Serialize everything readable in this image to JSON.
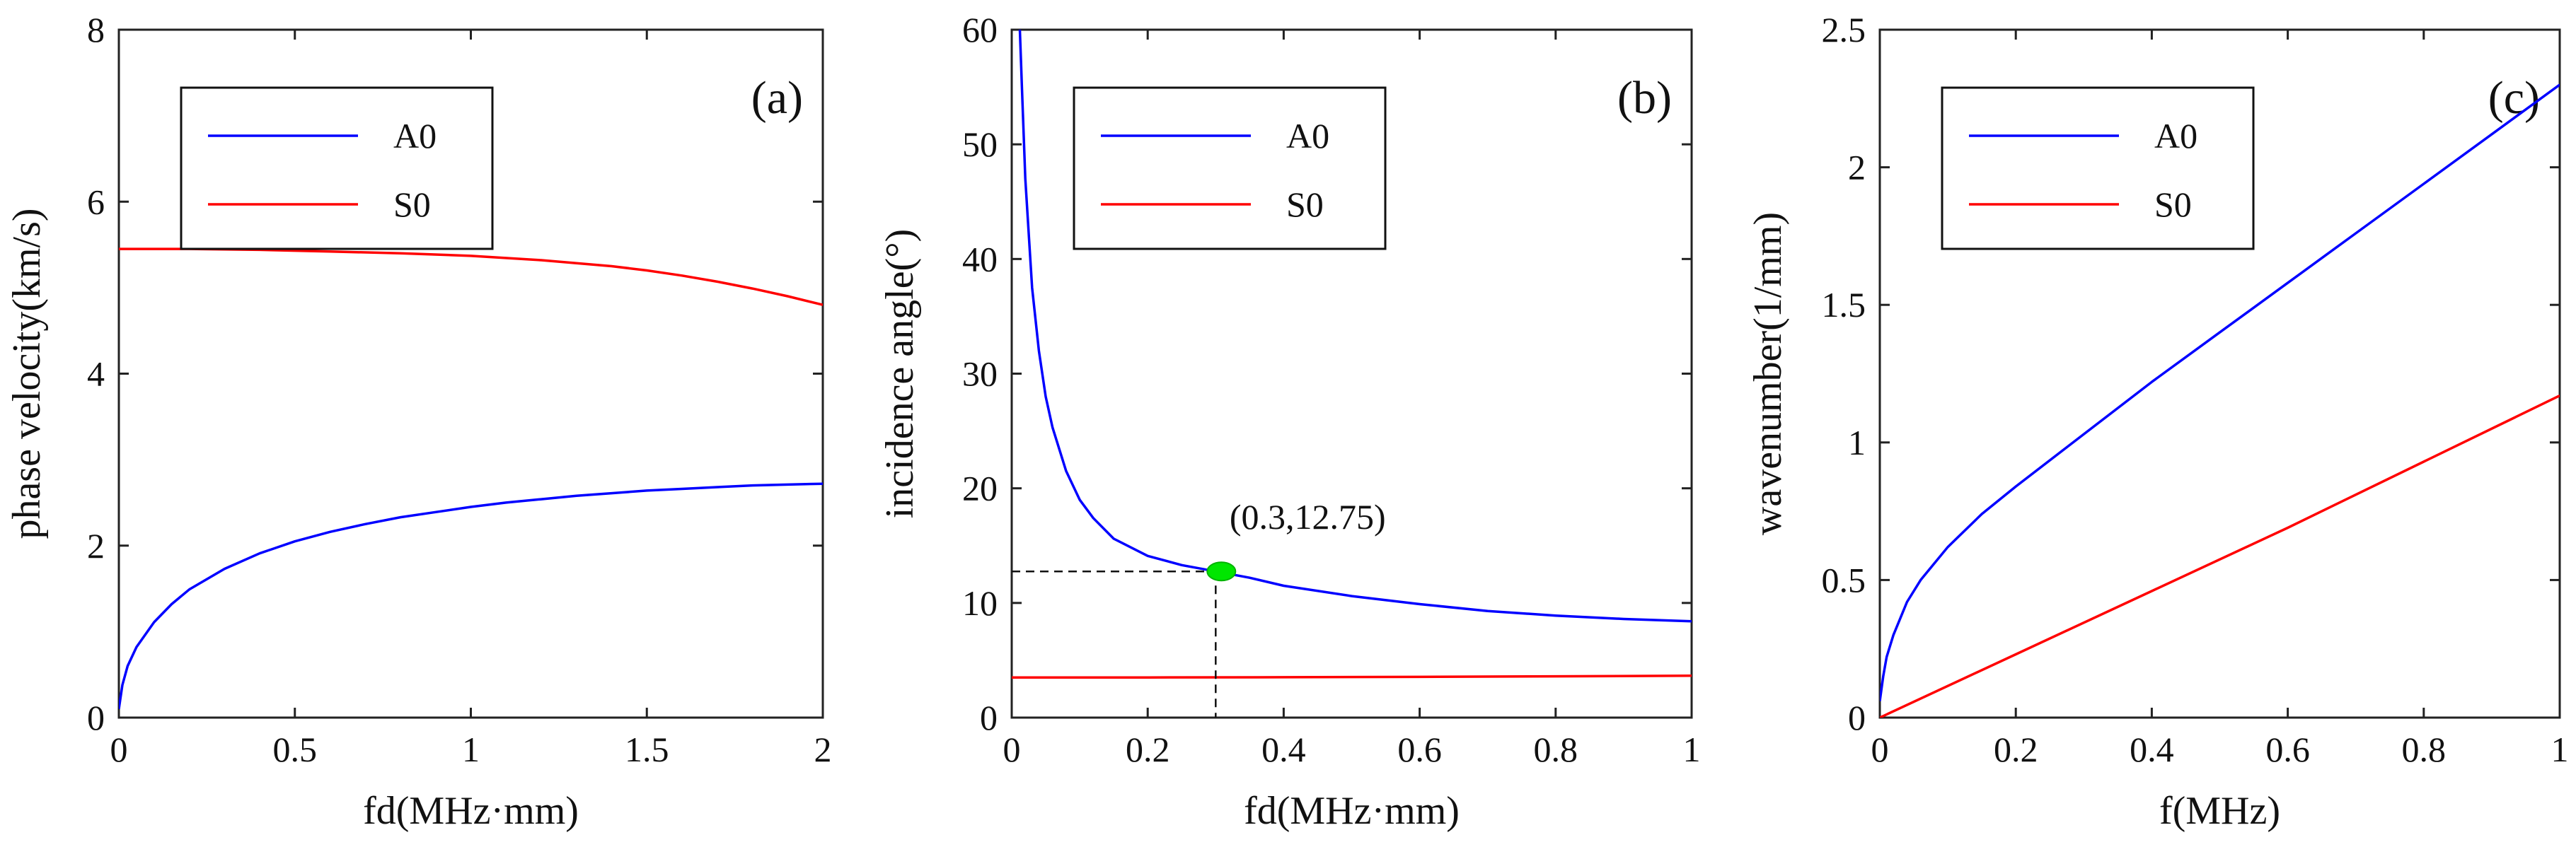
{
  "colors": {
    "A0": "#0000ff",
    "S0": "#ff0000",
    "marker": "#00e600",
    "axis": "#222222"
  },
  "chart_data": [
    {
      "type": "line",
      "panel_label": "(a)",
      "xlabel": "fd(MHz·mm)",
      "ylabel": "phase velocity(km/s)",
      "xlim": [
        0,
        2
      ],
      "ylim": [
        0,
        8
      ],
      "x_ticks": [
        "0",
        "0.5",
        "1",
        "1.5",
        "2"
      ],
      "x_tick_values": [
        0,
        0.5,
        1,
        1.5,
        2
      ],
      "y_ticks": [
        "0",
        "2",
        "4",
        "6",
        "8"
      ],
      "y_tick_values": [
        0,
        2,
        4,
        6,
        8
      ],
      "legend": {
        "position": "top-left",
        "entries": [
          "A0",
          "S0"
        ]
      },
      "series": [
        {
          "name": "A0",
          "color_key": "A0",
          "x": [
            0,
            0.01,
            0.025,
            0.05,
            0.1,
            0.15,
            0.2,
            0.3,
            0.4,
            0.5,
            0.6,
            0.7,
            0.8,
            0.9,
            1.0,
            1.1,
            1.2,
            1.3,
            1.4,
            1.5,
            1.6,
            1.7,
            1.8,
            1.9,
            2.0
          ],
          "y": [
            0.1,
            0.38,
            0.6,
            0.82,
            1.11,
            1.32,
            1.49,
            1.73,
            1.91,
            2.05,
            2.16,
            2.25,
            2.33,
            2.39,
            2.45,
            2.5,
            2.54,
            2.58,
            2.61,
            2.64,
            2.66,
            2.68,
            2.7,
            2.71,
            2.72
          ]
        },
        {
          "name": "S0",
          "color_key": "S0",
          "x": [
            0,
            0.2,
            0.4,
            0.6,
            0.8,
            1.0,
            1.2,
            1.4,
            1.5,
            1.6,
            1.7,
            1.8,
            1.9,
            2.0
          ],
          "y": [
            5.45,
            5.45,
            5.44,
            5.42,
            5.4,
            5.37,
            5.32,
            5.25,
            5.2,
            5.14,
            5.07,
            4.99,
            4.9,
            4.8
          ]
        }
      ]
    },
    {
      "type": "line",
      "panel_label": "(b)",
      "xlabel": "fd(MHz·mm)",
      "ylabel": "incidence angle(°)",
      "xlim": [
        0,
        1
      ],
      "ylim": [
        0,
        60
      ],
      "x_ticks": [
        "0",
        "0.2",
        "0.4",
        "0.6",
        "0.8",
        "1"
      ],
      "x_tick_values": [
        0,
        0.2,
        0.4,
        0.6,
        0.8,
        1
      ],
      "y_ticks": [
        "0",
        "10",
        "20",
        "30",
        "40",
        "50",
        "60"
      ],
      "y_tick_values": [
        0,
        10,
        20,
        30,
        40,
        50,
        60
      ],
      "legend": {
        "position": "top-left",
        "entries": [
          "A0",
          "S0"
        ]
      },
      "series": [
        {
          "name": "A0",
          "color_key": "A0",
          "x": [
            0.012,
            0.015,
            0.02,
            0.03,
            0.04,
            0.05,
            0.06,
            0.08,
            0.1,
            0.12,
            0.15,
            0.2,
            0.25,
            0.3,
            0.35,
            0.4,
            0.5,
            0.6,
            0.7,
            0.8,
            0.9,
            1.0
          ],
          "y": [
            60,
            55,
            47,
            37.5,
            32,
            28,
            25.3,
            21.5,
            19,
            17.4,
            15.6,
            14.1,
            13.3,
            12.75,
            12.2,
            11.5,
            10.6,
            9.9,
            9.3,
            8.9,
            8.6,
            8.4
          ]
        },
        {
          "name": "S0",
          "color_key": "S0",
          "x": [
            0,
            0.2,
            0.4,
            0.6,
            0.8,
            1.0
          ],
          "y": [
            3.5,
            3.5,
            3.52,
            3.55,
            3.6,
            3.65
          ]
        }
      ],
      "annotation": {
        "text": "(0.3,12.75)",
        "point": [
          0.3,
          12.75
        ]
      }
    },
    {
      "type": "line",
      "panel_label": "(c)",
      "xlabel": "f(MHz)",
      "ylabel": "wavenumber(1/mm)",
      "xlim": [
        0,
        1
      ],
      "ylim": [
        0,
        2.5
      ],
      "x_ticks": [
        "0",
        "0.2",
        "0.4",
        "0.6",
        "0.8",
        "1"
      ],
      "x_tick_values": [
        0,
        0.2,
        0.4,
        0.6,
        0.8,
        1
      ],
      "y_ticks": [
        "0",
        "0.5",
        "1",
        "1.5",
        "2",
        "2.5"
      ],
      "y_tick_values": [
        0,
        0.5,
        1,
        1.5,
        2,
        2.5
      ],
      "legend": {
        "position": "top-left",
        "entries": [
          "A0",
          "S0"
        ]
      },
      "series": [
        {
          "name": "A0",
          "color_key": "A0",
          "x": [
            0,
            0.005,
            0.01,
            0.02,
            0.04,
            0.06,
            0.1,
            0.15,
            0.2,
            0.3,
            0.4,
            0.5,
            0.6,
            0.7,
            0.8,
            0.9,
            1.0
          ],
          "y": [
            0.06,
            0.15,
            0.22,
            0.3,
            0.42,
            0.5,
            0.62,
            0.74,
            0.84,
            1.03,
            1.22,
            1.4,
            1.58,
            1.76,
            1.94,
            2.12,
            2.3
          ]
        },
        {
          "name": "S0",
          "color_key": "S0",
          "x": [
            0,
            0.2,
            0.4,
            0.6,
            0.8,
            1.0
          ],
          "y": [
            0,
            0.23,
            0.46,
            0.69,
            0.93,
            1.17
          ]
        }
      ]
    }
  ]
}
